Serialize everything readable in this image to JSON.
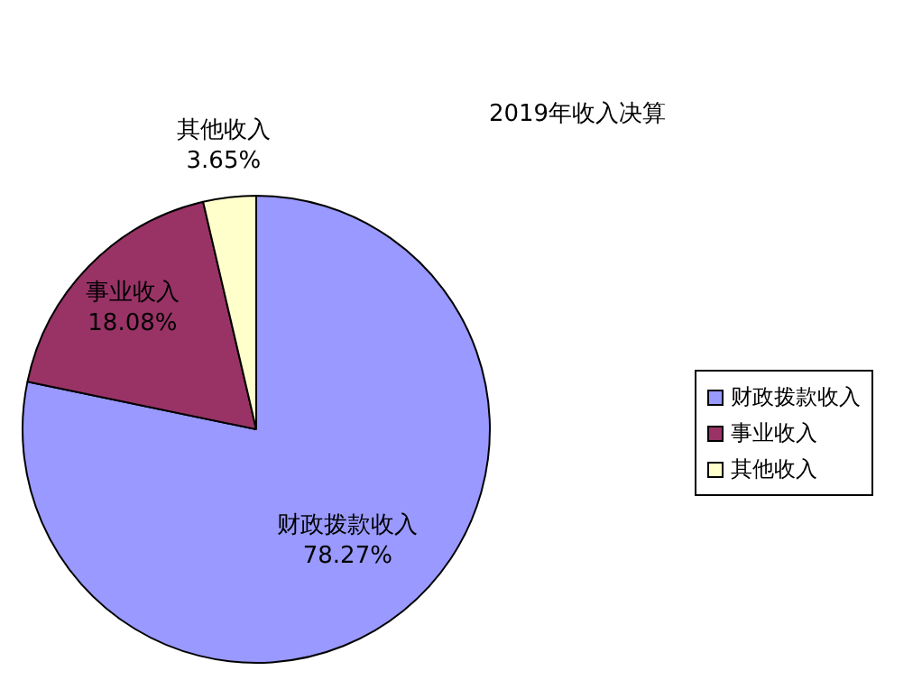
{
  "chart_data": {
    "type": "pie",
    "title": "2019年收入决算",
    "categories": [
      "财政拨款收入",
      "事业收入",
      "其他收入"
    ],
    "values": [
      78.27,
      18.08,
      3.65
    ],
    "value_labels": [
      "78.27%",
      "18.08%",
      "3.65%"
    ],
    "colors": [
      "#9999ff",
      "#993366",
      "#ffffcc"
    ],
    "legend": "right"
  }
}
